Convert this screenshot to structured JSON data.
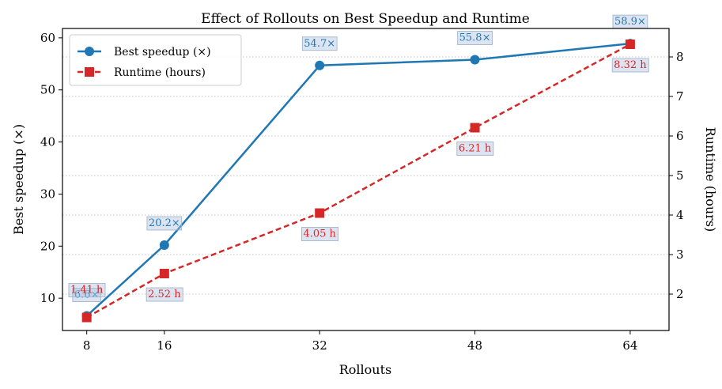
{
  "chart_data": {
    "type": "line",
    "title": "Effect of Rollouts on Best Speedup and Runtime",
    "xlabel": "Rollouts",
    "ylabel_left": "Best speedup (×)",
    "ylabel_right": "Runtime (hours)",
    "x": [
      8,
      16,
      32,
      48,
      64
    ],
    "x_ticks": [
      "8",
      "16",
      "32",
      "48",
      "64"
    ],
    "xlim": [
      5.5,
      68
    ],
    "ylim_left": [
      3.8,
      61.8
    ],
    "ylim_right": [
      1.08,
      8.72
    ],
    "y_ticks_left": [
      10,
      20,
      30,
      40,
      50,
      60
    ],
    "y_ticks_right": [
      2,
      3,
      4,
      5,
      6,
      7,
      8
    ],
    "grid": "horizontal dotted (right axis)",
    "legend_position": "top-left",
    "series": [
      {
        "name": "Best speedup (×)",
        "axis": "left",
        "style": "solid",
        "marker": "circle",
        "color": "#1f77b4",
        "values": [
          6.6,
          20.2,
          54.7,
          55.8,
          58.9
        ],
        "labels": [
          "6.6×",
          "20.2×",
          "54.7×",
          "55.8×",
          "58.9×"
        ]
      },
      {
        "name": "Runtime (hours)",
        "axis": "right",
        "style": "dashed",
        "marker": "square",
        "color": "#d62728",
        "values": [
          1.41,
          2.52,
          4.05,
          6.21,
          8.32
        ],
        "labels": [
          "1.41 h",
          "2.52 h",
          "4.05 h",
          "6.21 h",
          "8.32 h"
        ]
      }
    ]
  }
}
